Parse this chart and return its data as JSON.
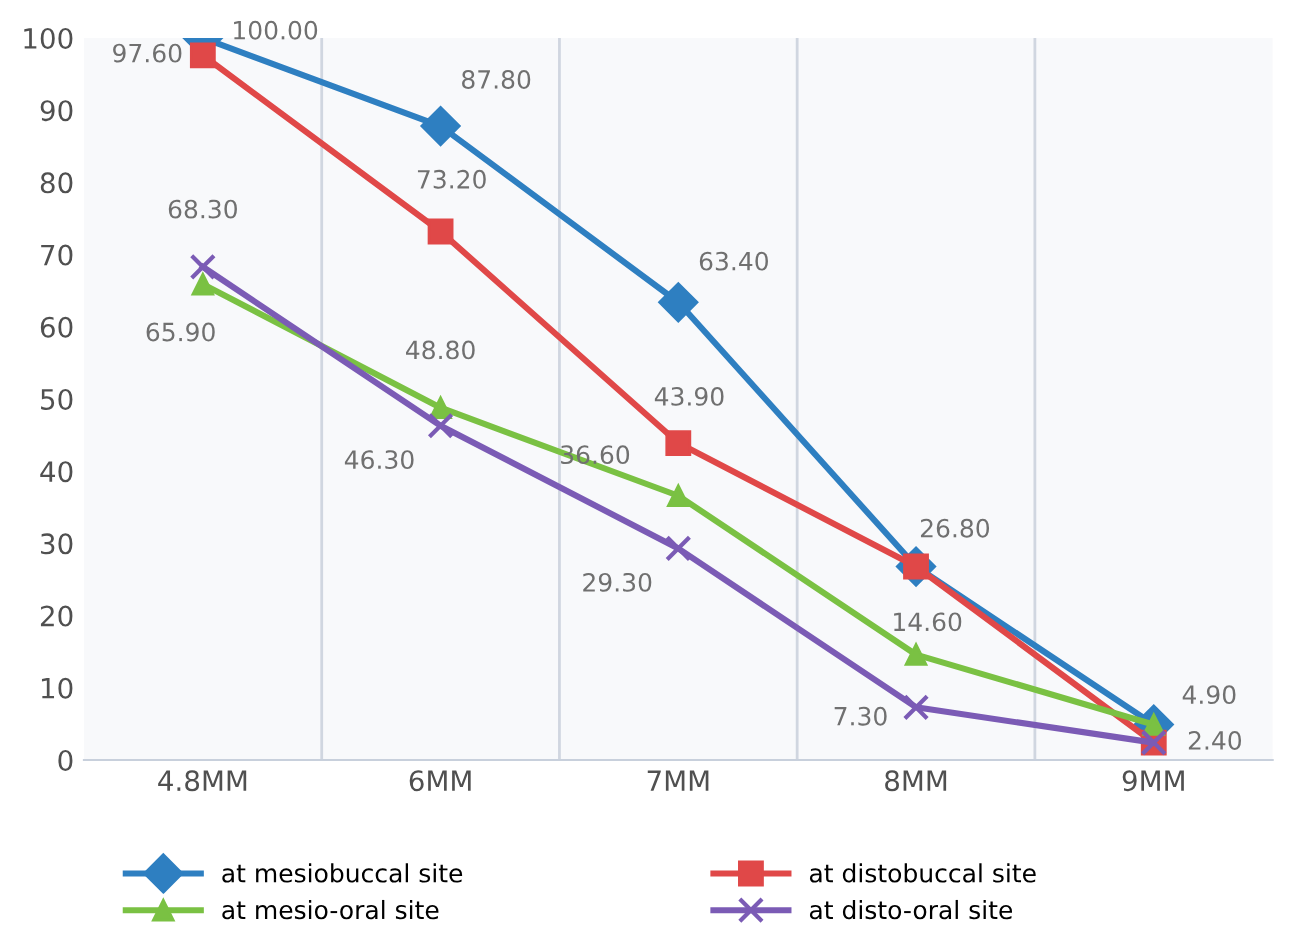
{
  "chart_data": {
    "type": "line",
    "categories": [
      "4.8MM",
      "6MM",
      "7MM",
      "8MM",
      "9MM"
    ],
    "series": [
      {
        "name": "at mesiobuccal site",
        "color": "#2e7fc1",
        "marker": "diamond",
        "values": [
          100.0,
          87.8,
          63.4,
          26.8,
          4.9
        ],
        "value_labels": [
          "100.00",
          "87.80",
          "63.40",
          null,
          "4.90"
        ]
      },
      {
        "name": "at distobuccal site",
        "color": "#e04848",
        "marker": "square",
        "values": [
          97.6,
          73.2,
          43.9,
          26.8,
          2.4
        ],
        "value_labels": [
          "97.60",
          "73.20",
          "43.90",
          "26.80",
          "2.40"
        ]
      },
      {
        "name": "at mesio-oral site",
        "color": "#7ac143",
        "marker": "triangle",
        "values": [
          65.9,
          48.8,
          36.6,
          14.6,
          4.9
        ],
        "value_labels": [
          "65.90",
          "48.80",
          "36.60",
          "14.60",
          null
        ]
      },
      {
        "name": "at disto-oral site",
        "color": "#7b5bb5",
        "marker": "cross",
        "values": [
          68.3,
          46.3,
          29.3,
          7.3,
          2.4
        ],
        "value_labels": [
          "68.30",
          "46.30",
          "29.30",
          "7.30",
          null
        ]
      }
    ],
    "ylim": [
      0,
      100
    ],
    "yticks": [
      0,
      10,
      20,
      30,
      40,
      50,
      60,
      70,
      80,
      90,
      100
    ],
    "grid": "x",
    "legend": "bottom",
    "line_style": "solid"
  }
}
